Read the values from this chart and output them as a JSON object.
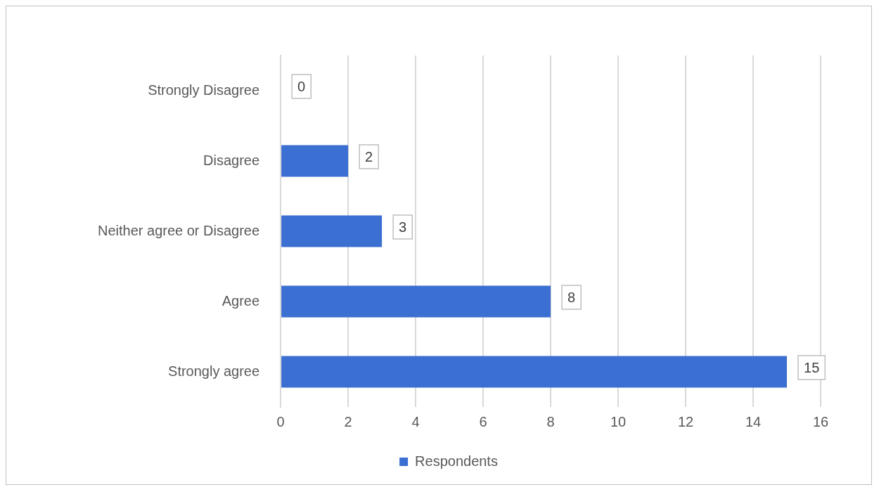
{
  "chart_data": {
    "type": "bar",
    "orientation": "horizontal",
    "categories": [
      "Strongly Disagree",
      "Disagree",
      "Neither agree or Disagree",
      "Agree",
      "Strongly agree"
    ],
    "series": [
      {
        "name": "Respondents",
        "color": "#3b6fd1",
        "values": [
          0,
          2,
          3,
          8,
          15
        ]
      }
    ],
    "xlim": [
      0,
      16
    ],
    "xticks": [
      0,
      2,
      4,
      6,
      8,
      10,
      12,
      14,
      16
    ],
    "grid": "x",
    "legend": "bottom",
    "data_labels": true
  }
}
